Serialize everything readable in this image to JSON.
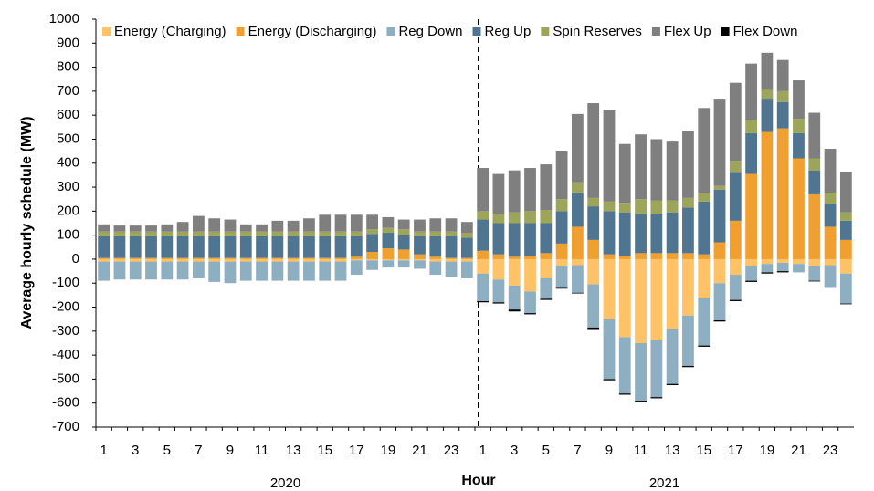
{
  "chart_data": {
    "type": "stacked_bar",
    "y_label": "Average hourly schedule (MW)",
    "x_label": "Hour",
    "groups": [
      "2020",
      "2021"
    ],
    "categories": [
      "1",
      null,
      "3",
      null,
      "5",
      null,
      "7",
      null,
      "9",
      null,
      "11",
      null,
      "13",
      null,
      "15",
      null,
      "17",
      null,
      "19",
      null,
      "21",
      null,
      "23",
      null,
      "1",
      null,
      "3",
      null,
      "5",
      null,
      "7",
      null,
      "9",
      null,
      "11",
      null,
      "13",
      null,
      "15",
      null,
      "17",
      null,
      "19",
      null,
      "21",
      null,
      "23",
      null
    ],
    "series": [
      {
        "name": "Energy (Charging)",
        "color": "#FFC266",
        "values": [
          -10,
          -10,
          -10,
          -10,
          -10,
          -10,
          -10,
          -10,
          -10,
          -10,
          -10,
          -10,
          -10,
          -10,
          -10,
          -10,
          -5,
          -5,
          -5,
          -5,
          -5,
          -10,
          -10,
          -10,
          -60,
          -85,
          -110,
          -135,
          -80,
          -30,
          -25,
          -105,
          -250,
          -325,
          -350,
          -335,
          -290,
          -235,
          -160,
          -100,
          -65,
          -30,
          -20,
          -15,
          -20,
          -30,
          -25,
          -60
        ]
      },
      {
        "name": "Energy (Discharging)",
        "color": "#F0A030",
        "values": [
          5,
          5,
          5,
          5,
          5,
          5,
          5,
          5,
          5,
          5,
          5,
          5,
          5,
          5,
          5,
          5,
          10,
          30,
          45,
          40,
          20,
          10,
          5,
          5,
          35,
          20,
          10,
          15,
          25,
          65,
          135,
          80,
          20,
          15,
          25,
          25,
          25,
          25,
          20,
          70,
          160,
          355,
          530,
          545,
          420,
          270,
          135,
          80
        ]
      },
      {
        "name": "Reg Down",
        "color": "#8EAFC2",
        "values": [
          -80,
          -75,
          -75,
          -75,
          -75,
          -75,
          -70,
          -85,
          -90,
          -80,
          -80,
          -80,
          -80,
          -80,
          -80,
          -80,
          -60,
          -40,
          -30,
          -30,
          -35,
          -55,
          -65,
          -70,
          -115,
          -95,
          -100,
          -90,
          -85,
          -90,
          -115,
          -180,
          -250,
          -235,
          -240,
          -240,
          -230,
          -210,
          -200,
          -155,
          -105,
          -60,
          -35,
          -35,
          -35,
          -60,
          -95,
          -125
        ]
      },
      {
        "name": "Reg Up",
        "color": "#4F7590",
        "values": [
          90,
          90,
          90,
          90,
          90,
          90,
          90,
          90,
          90,
          90,
          90,
          90,
          90,
          90,
          90,
          90,
          85,
          75,
          65,
          60,
          75,
          85,
          90,
          85,
          130,
          130,
          140,
          135,
          125,
          135,
          140,
          140,
          180,
          180,
          165,
          165,
          170,
          190,
          220,
          220,
          200,
          170,
          135,
          110,
          105,
          100,
          95,
          80
        ]
      },
      {
        "name": "Spin Reserves",
        "color": "#9CA55A",
        "values": [
          20,
          20,
          20,
          20,
          20,
          20,
          20,
          20,
          20,
          20,
          20,
          20,
          20,
          20,
          20,
          20,
          20,
          20,
          20,
          25,
          20,
          20,
          20,
          20,
          35,
          40,
          45,
          50,
          55,
          50,
          45,
          35,
          40,
          40,
          60,
          55,
          50,
          40,
          35,
          15,
          50,
          55,
          40,
          45,
          60,
          50,
          45,
          35
        ]
      },
      {
        "name": "Flex Up",
        "color": "#7F7F7F",
        "values": [
          30,
          25,
          25,
          25,
          30,
          40,
          65,
          55,
          50,
          30,
          30,
          45,
          45,
          55,
          70,
          70,
          70,
          60,
          45,
          40,
          50,
          55,
          55,
          45,
          180,
          165,
          175,
          180,
          190,
          200,
          285,
          395,
          380,
          245,
          270,
          255,
          245,
          280,
          355,
          360,
          325,
          235,
          155,
          130,
          160,
          190,
          185,
          170
        ]
      },
      {
        "name": "Flex Down",
        "color": "#000000",
        "values": [
          0,
          0,
          0,
          0,
          0,
          0,
          0,
          0,
          0,
          0,
          0,
          0,
          0,
          0,
          0,
          0,
          0,
          0,
          0,
          0,
          0,
          0,
          0,
          0,
          -5,
          -5,
          -8,
          -5,
          -5,
          -3,
          -3,
          -10,
          -5,
          -5,
          -5,
          -5,
          -5,
          -5,
          -5,
          -5,
          -5,
          -5,
          -5,
          -5,
          0,
          -3,
          0,
          -3
        ]
      }
    ],
    "ylim": [
      -700,
      1000
    ],
    "yticks": [
      -700,
      -600,
      -500,
      -400,
      -300,
      -200,
      -100,
      0,
      100,
      200,
      300,
      400,
      500,
      600,
      700,
      800,
      900,
      1000
    ],
    "legend": "top"
  }
}
